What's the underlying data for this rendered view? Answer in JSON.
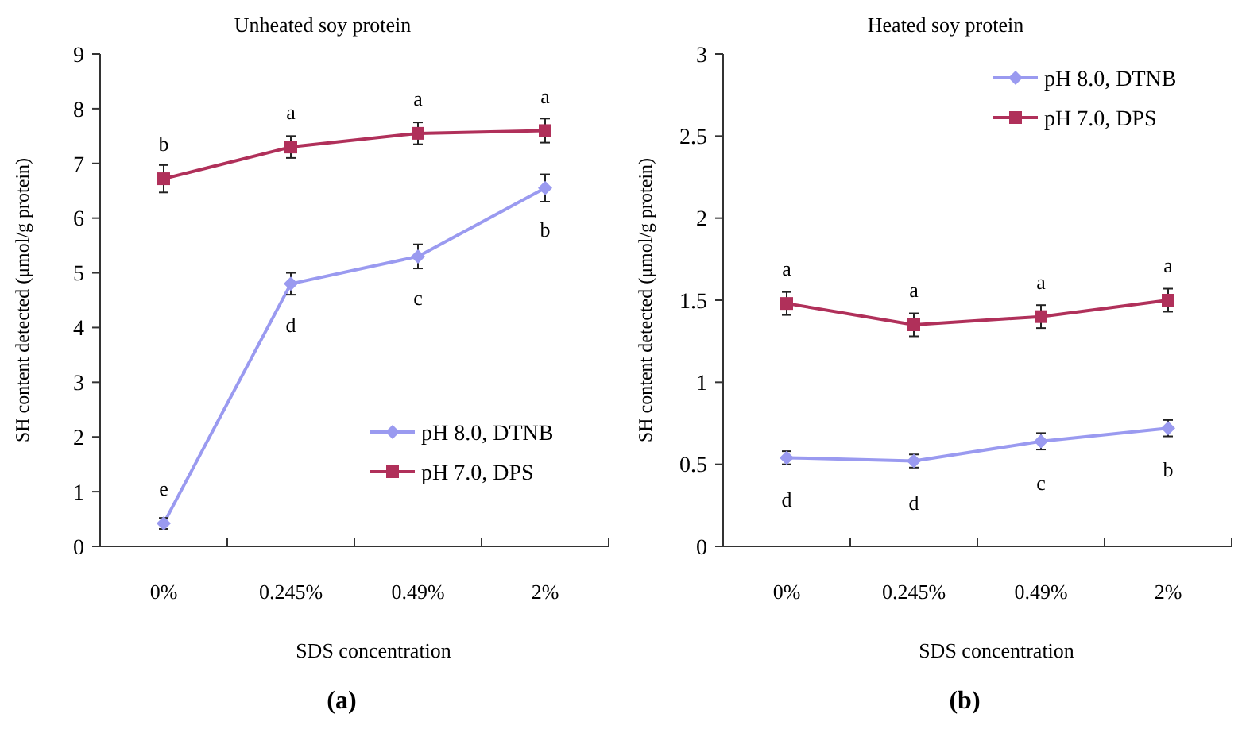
{
  "chart_data": [
    {
      "type": "line",
      "title": "Unheated soy protein",
      "xlabel": "SDS concentration",
      "ylabel": "SH content detected (μmol/g protein)",
      "categories": [
        "0%",
        "0.245%",
        "0.49%",
        "2%"
      ],
      "ylim": [
        0,
        9
      ],
      "yticks": [
        0,
        1,
        2,
        3,
        4,
        5,
        6,
        7,
        8,
        9
      ],
      "grid": false,
      "legend": "bottom right",
      "series": [
        {
          "name": "pH 8.0, DTNB",
          "color": "#9a9af0",
          "marker": "diamond",
          "values": [
            0.42,
            4.8,
            5.3,
            6.55
          ],
          "errors": [
            0.1,
            0.2,
            0.22,
            0.25
          ]
        },
        {
          "name": "pH 7.0, DPS",
          "color": "#b0305a",
          "marker": "square",
          "values": [
            6.72,
            7.3,
            7.55,
            7.6
          ],
          "errors": [
            0.25,
            0.2,
            0.2,
            0.22
          ]
        }
      ],
      "annotations": [
        "(a)",
        {
          "text": "b",
          "x": "0%",
          "y": 6.72
        },
        {
          "text": "a",
          "x": "0.245%",
          "y": 7.3
        },
        {
          "text": "a",
          "x": "0.49%",
          "y": 7.55
        },
        {
          "text": "a",
          "x": "2%",
          "y": 7.6
        },
        {
          "text": "e",
          "x": "0%",
          "y": 0.42
        },
        {
          "text": "d",
          "x": "0.245%",
          "y": 4.8
        },
        {
          "text": "c",
          "x": "0.49%",
          "y": 5.3
        },
        {
          "text": "b",
          "x": "2%",
          "y": 6.55
        }
      ]
    },
    {
      "type": "line",
      "title": "Heated soy protein",
      "xlabel": "SDS concentration",
      "ylabel": "SH content detected (μmol/g protein)",
      "categories": [
        "0%",
        "0.245%",
        "0.49%",
        "2%"
      ],
      "ylim": [
        0,
        3
      ],
      "yticks": [
        0,
        0.5,
        1,
        1.5,
        2,
        2.5,
        3
      ],
      "grid": false,
      "legend": "top right",
      "series": [
        {
          "name": "pH 8.0, DTNB",
          "color": "#9a9af0",
          "marker": "diamond",
          "values": [
            0.54,
            0.52,
            0.64,
            0.72
          ],
          "errors": [
            0.04,
            0.04,
            0.05,
            0.05
          ]
        },
        {
          "name": "pH 7.0, DPS",
          "color": "#b0305a",
          "marker": "square",
          "values": [
            1.48,
            1.35,
            1.4,
            1.5
          ],
          "errors": [
            0.07,
            0.07,
            0.07,
            0.07
          ]
        }
      ],
      "annotations": [
        "(b)",
        {
          "text": "a",
          "x": "0%",
          "y": 1.48
        },
        {
          "text": "a",
          "x": "0.245%",
          "y": 1.35
        },
        {
          "text": "a",
          "x": "0.49%",
          "y": 1.4
        },
        {
          "text": "a",
          "x": "2%",
          "y": 1.5
        },
        {
          "text": "d",
          "x": "0%",
          "y": 0.54
        },
        {
          "text": "d",
          "x": "0.245%",
          "y": 0.52
        },
        {
          "text": "c",
          "x": "0.49%",
          "y": 0.64
        },
        {
          "text": "b",
          "x": "2%",
          "y": 0.72
        }
      ]
    }
  ]
}
